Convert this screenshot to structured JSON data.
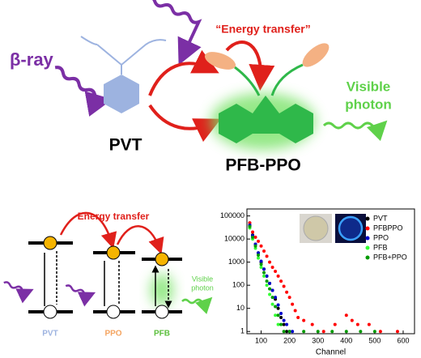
{
  "diagram": {
    "top": {
      "beta_ray": "β-ray",
      "energy_transfer": "“Energy transfer”",
      "visible_photon": [
        "Visible",
        "photon"
      ],
      "pvt": "PVT",
      "pfb_ppo": "PFB-PPO"
    },
    "bottom": {
      "energy_transfer": "Energy transfer",
      "visible_photon": [
        "Visible",
        "photon"
      ],
      "levels": [
        "PVT",
        "PPO",
        "PFB"
      ]
    }
  },
  "chart_data": {
    "type": "scatter",
    "xlabel": "Channel",
    "xlim": [
      50,
      640
    ],
    "ylim": [
      0.8,
      200000
    ],
    "ylog": true,
    "xticks": [
      100,
      200,
      300,
      400,
      500,
      600
    ],
    "yticks": [
      1,
      10,
      100,
      1000,
      10000,
      100000
    ],
    "legend": "upper right",
    "series": [
      {
        "name": "PVT",
        "color": "#000000",
        "x": [
          60,
          70,
          80,
          90,
          100,
          110,
          120,
          130,
          140,
          150,
          160,
          170,
          180,
          190
        ],
        "values": [
          40000,
          15000,
          6000,
          2500,
          1000,
          500,
          250,
          120,
          60,
          25,
          10,
          4,
          2,
          1
        ]
      },
      {
        "name": "PFBPPO",
        "color": "#ff0000",
        "x": [
          60,
          70,
          80,
          90,
          100,
          110,
          120,
          130,
          140,
          150,
          160,
          170,
          180,
          190,
          200,
          210,
          220,
          230,
          250,
          280,
          320,
          360,
          400,
          420,
          440,
          480,
          520,
          580
        ],
        "values": [
          50000,
          20000,
          12000,
          8000,
          5000,
          3000,
          1800,
          1000,
          600,
          400,
          250,
          150,
          90,
          50,
          30,
          15,
          8,
          4,
          3,
          2,
          1,
          2,
          5,
          3,
          2,
          2,
          1,
          1
        ]
      },
      {
        "name": "PPO",
        "color": "#0000cc",
        "x": [
          60,
          70,
          80,
          90,
          100,
          110,
          120,
          130,
          140,
          150,
          160,
          170,
          180,
          190,
          200,
          210
        ],
        "values": [
          40000,
          14000,
          6000,
          2500,
          1100,
          500,
          250,
          120,
          60,
          30,
          14,
          6,
          3,
          2,
          1,
          1
        ]
      },
      {
        "name": "PFB",
        "color": "#33ff33",
        "x": [
          60,
          70,
          80,
          90,
          100,
          110,
          120,
          130,
          140,
          150,
          160
        ],
        "values": [
          30000,
          10000,
          4000,
          1500,
          600,
          250,
          100,
          40,
          15,
          5,
          2
        ]
      },
      {
        "name": "PFB+PPO",
        "color": "#009900",
        "x": [
          60,
          70,
          80,
          90,
          100,
          110,
          120,
          130,
          140,
          150,
          160,
          170,
          180,
          200,
          250,
          300,
          350,
          400,
          450,
          500
        ],
        "values": [
          35000,
          12000,
          5000,
          2000,
          800,
          350,
          150,
          70,
          30,
          12,
          5,
          2,
          1,
          1,
          1,
          1,
          1,
          1,
          1,
          1
        ]
      }
    ]
  }
}
